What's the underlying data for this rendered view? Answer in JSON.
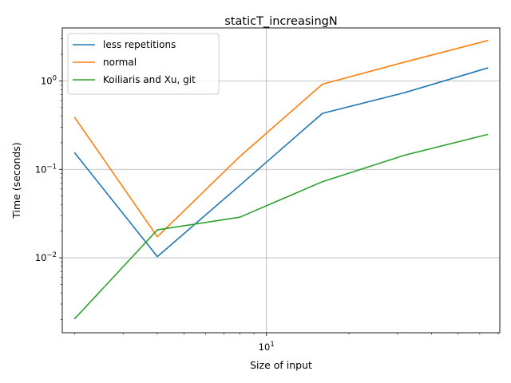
{
  "chart_data": {
    "type": "line",
    "title": "staticT_increasingN",
    "xlabel": "Size of input",
    "ylabel": "Time (seconds)",
    "xscale": "log",
    "yscale": "log",
    "xlim": [
      1.8,
      71
    ],
    "ylim": [
      0.00142,
      3.98
    ],
    "grid": "major",
    "legend_position": "top-left",
    "x_major_ticks": [
      {
        "value": 10,
        "base": "10",
        "exp": "1"
      }
    ],
    "y_major_ticks": [
      {
        "value": 0.01,
        "base": "10",
        "exp": "−2"
      },
      {
        "value": 0.1,
        "base": "10",
        "exp": "−1"
      },
      {
        "value": 1,
        "base": "10",
        "exp": "0"
      }
    ],
    "x": [
      2,
      4,
      8,
      16,
      32,
      64
    ],
    "series": [
      {
        "name": "less repetitions",
        "color": "#1f77b4",
        "values": [
          0.153,
          0.0103,
          0.066,
          0.43,
          0.74,
          1.4
        ]
      },
      {
        "name": "normal",
        "color": "#ff7f0e",
        "values": [
          0.385,
          0.0173,
          0.14,
          0.92,
          1.64,
          2.86
        ]
      },
      {
        "name": "Koiliaris and Xu, git",
        "color": "#2ca02c",
        "values": [
          0.00205,
          0.0207,
          0.0288,
          0.0725,
          0.145,
          0.248
        ]
      }
    ]
  }
}
